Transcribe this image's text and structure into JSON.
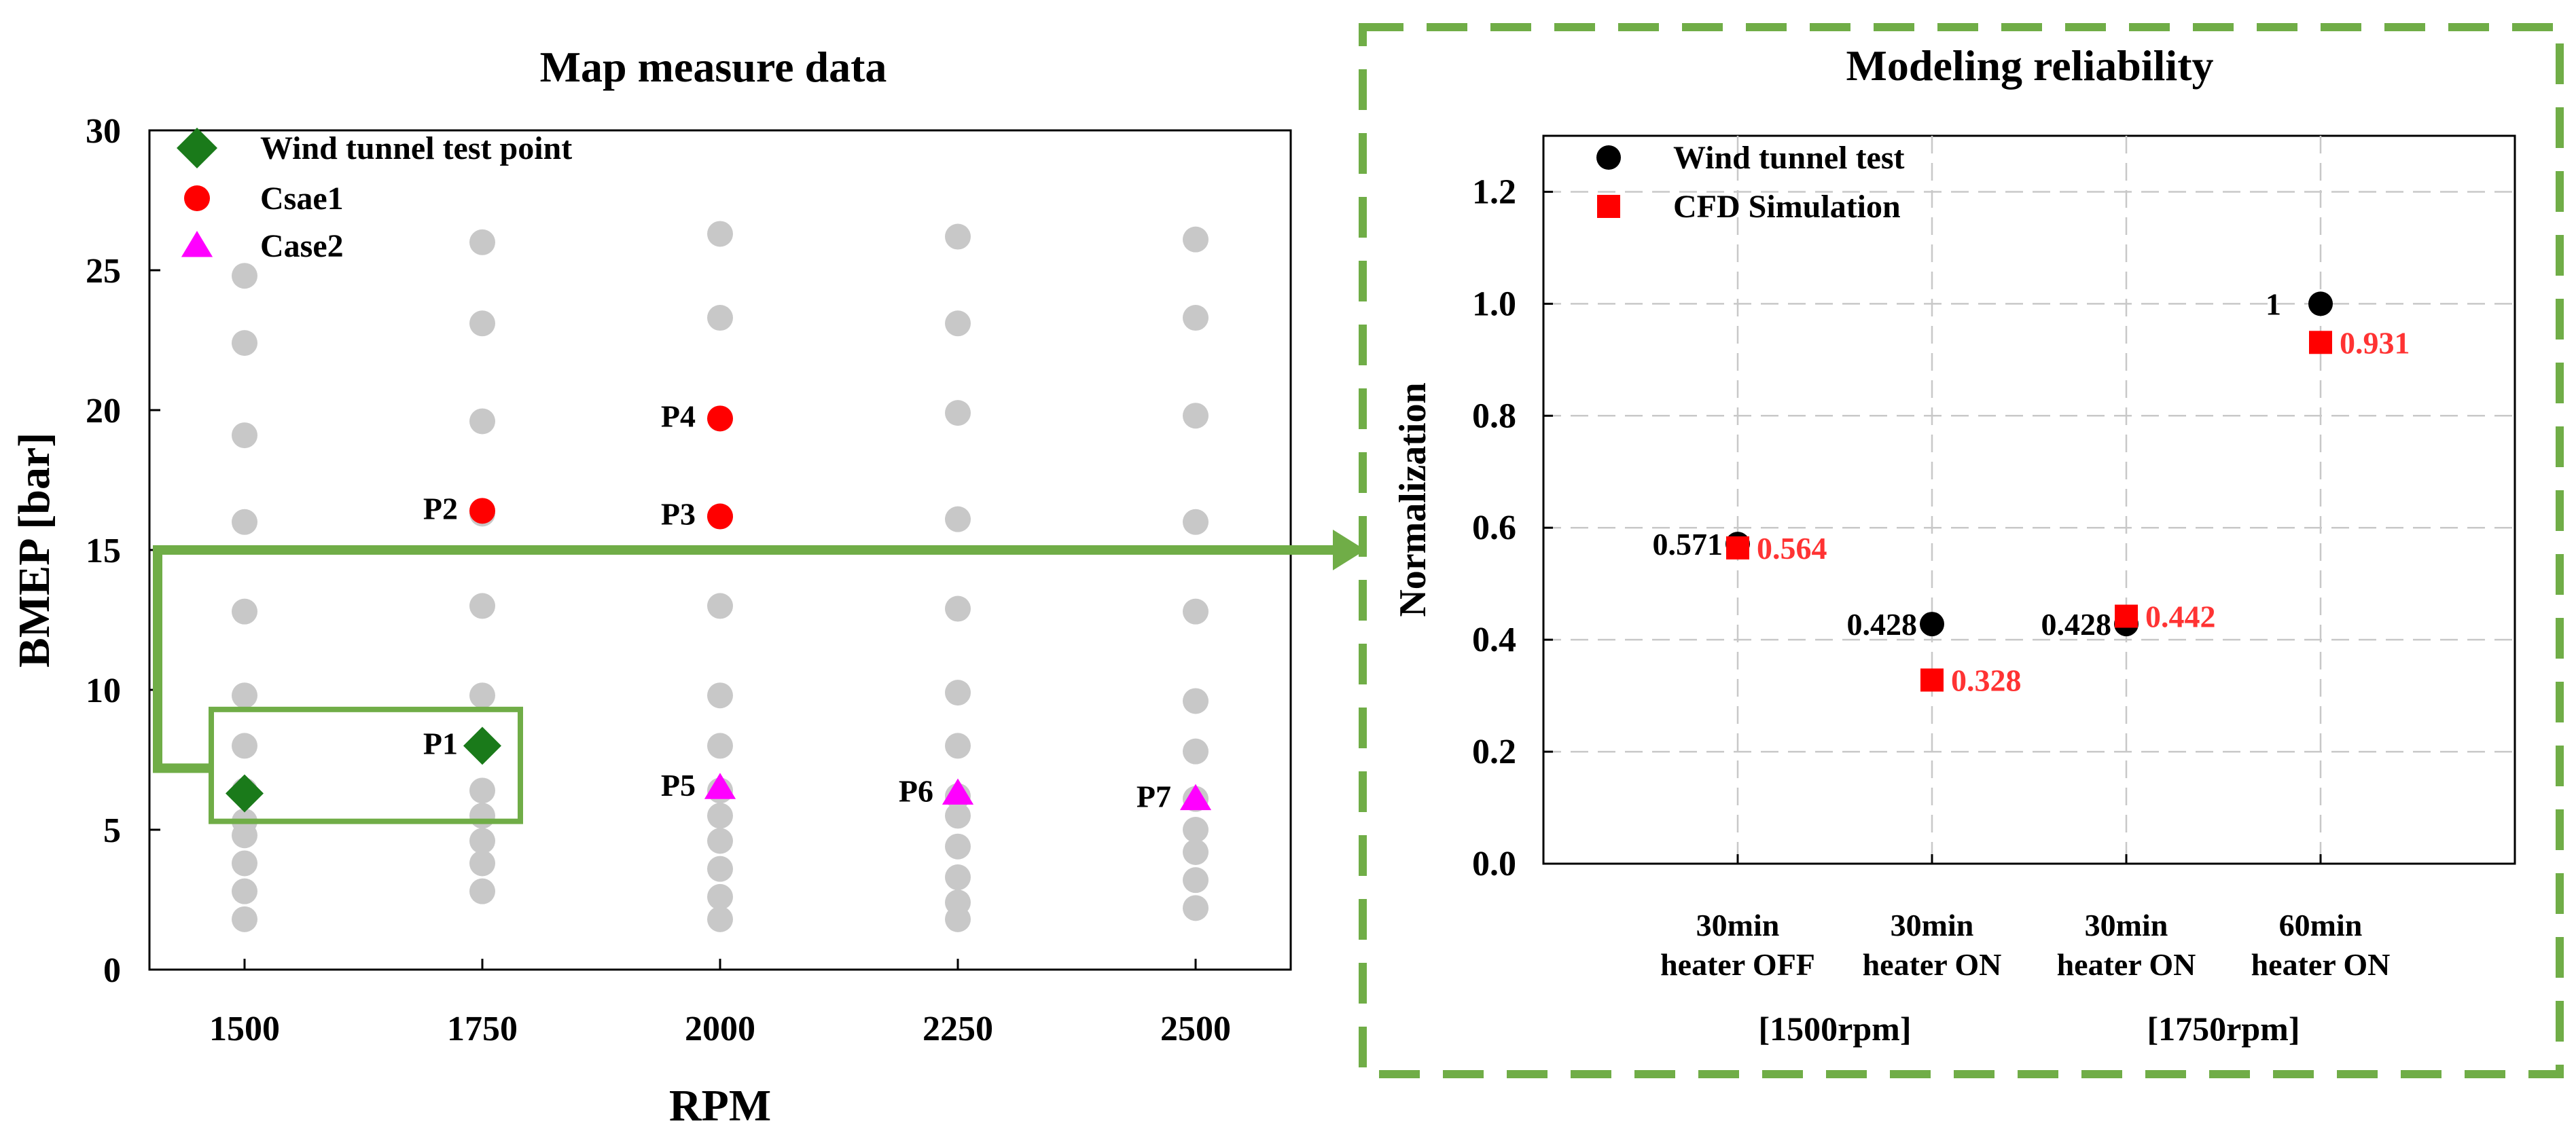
{
  "chart_data": [
    {
      "type": "scatter",
      "title": "Map measure data",
      "xlabel": "RPM",
      "ylabel": "BMEP [bar]",
      "xlim": [
        1400,
        2600
      ],
      "ylim": [
        0,
        30
      ],
      "xticks": [
        1500,
        1750,
        2000,
        2250,
        2500
      ],
      "yticks": [
        0,
        5,
        10,
        15,
        20,
        25,
        30
      ],
      "grid": false,
      "legend": "top-left",
      "colors": {
        "map_points": "#c8c8c8",
        "wind_tunnel_test_point": "#1a7a1a",
        "case1": "#ff0000",
        "case2": "#ff00ff",
        "highlight": "#70ad47"
      },
      "map_points": [
        {
          "rpm": 1500,
          "bmep": [
            1.8,
            2.8,
            3.8,
            4.8,
            5.3,
            6.4,
            8.0,
            9.8,
            12.8,
            16.0,
            19.1,
            22.4,
            24.8
          ]
        },
        {
          "rpm": 1750,
          "bmep": [
            2.8,
            3.8,
            4.6,
            5.5,
            6.4,
            8.0,
            9.8,
            13.0,
            16.3,
            19.6,
            23.1,
            26.0
          ]
        },
        {
          "rpm": 2000,
          "bmep": [
            1.8,
            2.6,
            3.6,
            4.6,
            5.5,
            6.4,
            8.0,
            9.8,
            13.0,
            16.2,
            19.7,
            23.3,
            26.3
          ]
        },
        {
          "rpm": 2250,
          "bmep": [
            1.8,
            2.4,
            3.3,
            4.4,
            5.5,
            6.2,
            8.0,
            9.9,
            12.9,
            16.1,
            19.9,
            23.1,
            26.2
          ]
        },
        {
          "rpm": 2500,
          "bmep": [
            2.2,
            3.2,
            4.2,
            5.0,
            6.1,
            7.8,
            9.6,
            12.8,
            16.0,
            19.8,
            23.3,
            26.1
          ]
        }
      ],
      "series": [
        {
          "name": "Wind tunnel test point",
          "marker": "diamond",
          "points": [
            {
              "rpm": 1500,
              "bmep": 6.3
            },
            {
              "rpm": 1750,
              "bmep": 8.0
            }
          ]
        },
        {
          "name": "Csae1",
          "marker": "circle",
          "points": [
            {
              "label": "P1",
              "rpm": 1750,
              "bmep": 8.0
            },
            {
              "label": "P2",
              "rpm": 1750,
              "bmep": 16.4
            },
            {
              "label": "P3",
              "rpm": 2000,
              "bmep": 16.2
            },
            {
              "label": "P4",
              "rpm": 2000,
              "bmep": 19.7
            }
          ]
        },
        {
          "name": "Case2",
          "marker": "triangle",
          "points": [
            {
              "label": "P5",
              "rpm": 2000,
              "bmep": 6.5
            },
            {
              "label": "P6",
              "rpm": 2250,
              "bmep": 6.3
            },
            {
              "label": "P7",
              "rpm": 2500,
              "bmep": 6.1
            }
          ]
        }
      ],
      "highlight_box": {
        "rpm_range": [
          1465,
          1790
        ],
        "bmep_range": [
          5.3,
          9.3
        ]
      }
    },
    {
      "type": "scatter",
      "title": "Modeling reliability",
      "xlabel": "",
      "ylabel": "Normalization",
      "ylim": [
        0,
        1.3
      ],
      "yticks": [
        "0.0",
        "0.2",
        "0.4",
        "0.6",
        "0.8",
        "1.0",
        "1.2"
      ],
      "grid": true,
      "legend": "top-left",
      "colors": {
        "wind_tunnel_test": "#000000",
        "cfd_simulation": "#ff0000",
        "value_label_cfd": "#ff3333",
        "frame_dash": "#70ad47"
      },
      "categories": [
        [
          "30min",
          "heater OFF"
        ],
        [
          "30min",
          "heater ON"
        ],
        [
          "30min",
          "heater ON"
        ],
        [
          "60min",
          "heater ON"
        ]
      ],
      "groups": [
        "[1500rpm]",
        "[1750rpm]"
      ],
      "series": [
        {
          "name": "Wind tunnel test",
          "marker": "circle",
          "values": [
            0.571,
            0.428,
            0.428,
            1
          ],
          "labels": [
            "0.571",
            "0.428",
            "0.428",
            "1"
          ]
        },
        {
          "name": "CFD Simulation",
          "marker": "square",
          "values": [
            0.564,
            0.328,
            0.442,
            0.931
          ],
          "labels": [
            "0.564",
            "0.328",
            "0.442",
            "0.931"
          ]
        }
      ]
    }
  ]
}
